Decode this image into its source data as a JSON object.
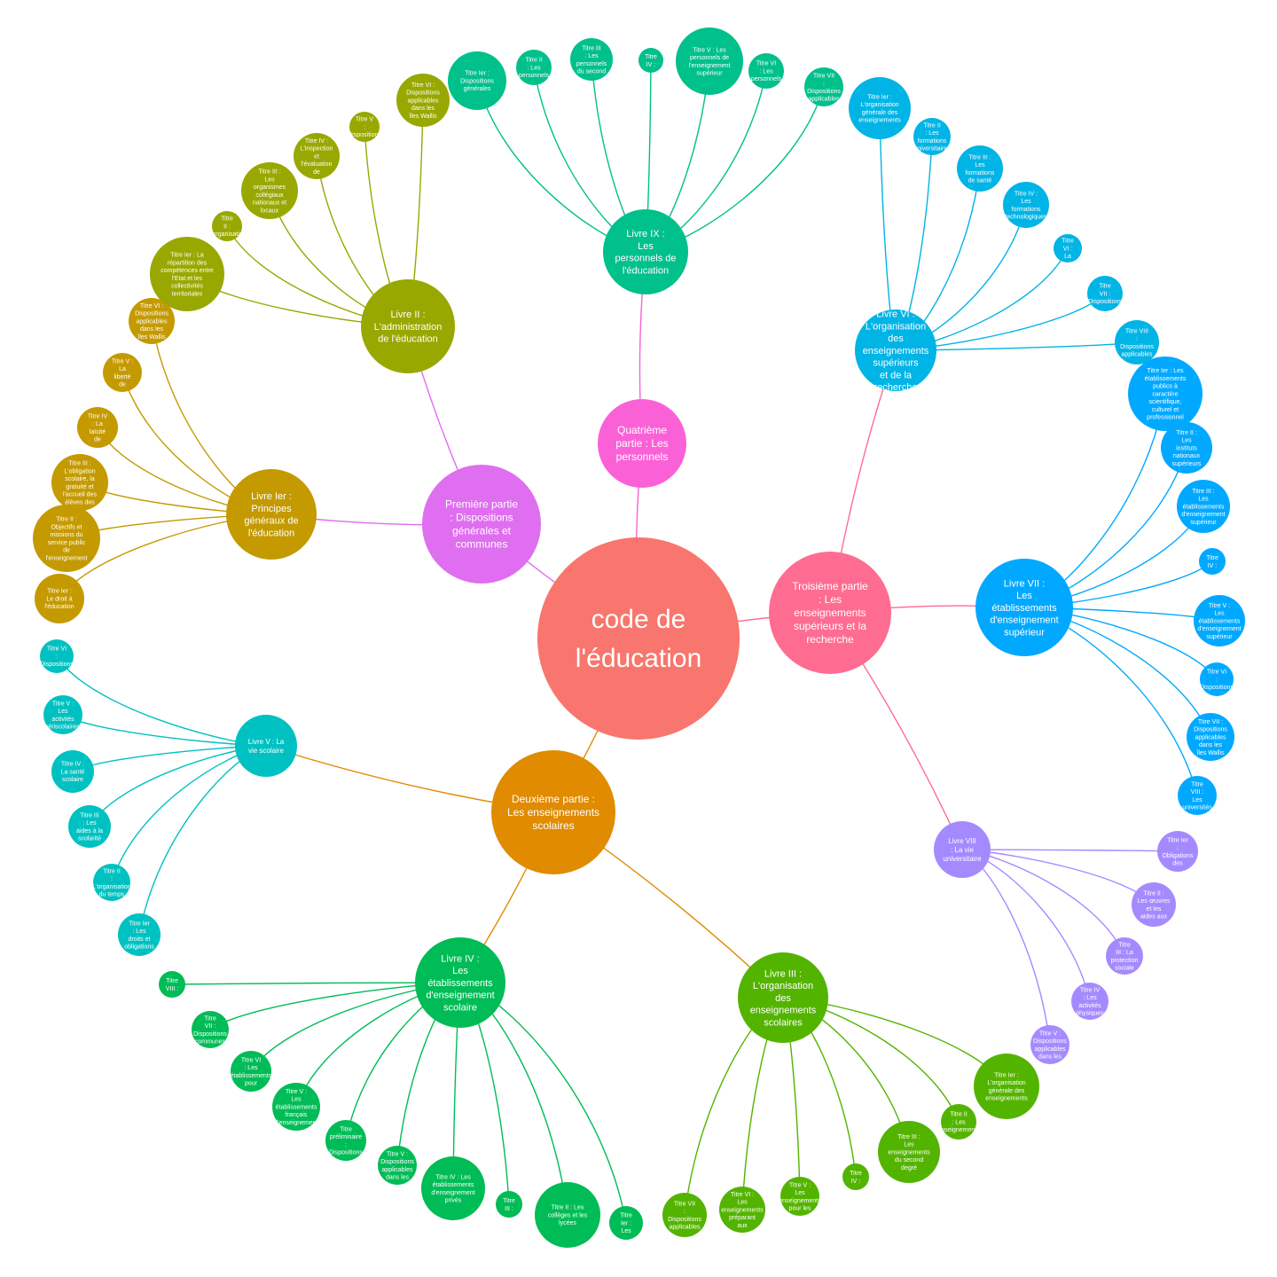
{
  "root": {
    "label": "code de l'éducation",
    "color": "#F8766D"
  },
  "parts": [
    {
      "label": "Première partie : Dispositions générales et communes",
      "color": "#E06EF0",
      "books": [
        {
          "label": "Livre Ier : Principes généraux de l'éducation",
          "color": "#C49A00",
          "titles": [
            "Titre V : La liberté de l'enseignement",
            "Titre IV : La laïcité de l'enseignement public",
            "Titre III : L'obligation scolaire, la gratuité et l'accueil des élèves des écoles maternelles et élémentaires",
            "Titre II : Objectifs et missions du service public de l'enseignement",
            "Titre Ier : Le droit à l'éducation",
            "Titre VI : Dispositions applicables dans les îles Wallis et Futuna, à Mayotte, en Polynésie française"
          ]
        },
        {
          "label": "Livre II : L'administration de l'éducation",
          "color": "#99A800",
          "titles": [
            "Titre Ier : La répartition des compétences entre l'Etat et les collectivités territoriales",
            "Titre II : L'organisation des services de l'Etat",
            "Titre III : Les organismes collégiaux nationaux et locaux",
            "Titre IV : L'inspection et l'évaluation de l'éducation",
            "Titre V : Dispositions relatives",
            "Titre VI : Dispositions applicables dans les îles Wallis et Futuna, à Mayotte, en Polynésie"
          ]
        }
      ]
    },
    {
      "label": "Quatrième partie : Les personnels",
      "color": "#FB61D7",
      "books": [
        {
          "label": "Livre IX : Les personnels de l'éducation",
          "color": "#00C08B",
          "titles": [
            "Titre Ier : Dispositions générales",
            "Titre II : Les personnels du premier degré",
            "Titre III : Les personnels du second degré",
            "Titre IV : Les personnels d'inspection et de direction",
            "Titre V : Les personnels de l'enseignement supérieur",
            "Titre VI : Les personnels des établissements d'enseignement",
            "Titre VII : Dispositions applicables dans les îles Wallis et Futuna, à Mayotte, en Polynésie"
          ]
        }
      ]
    },
    {
      "label": "Troisième partie : Les enseignements supérieurs et la recherche",
      "color": "#FF6C91",
      "books": [
        {
          "label": "Livre VI : L'organisation des enseignements supérieurs et de la recherche",
          "color": "#00B4E6",
          "titles": [
            "Titre Ier : L'organisation générale des enseignements",
            "Titre II : Les formations universitaires générales et les formations",
            "Titre III : Les formations de santé",
            "Titre IV : Les formations technologiques",
            "Titre VI : La recherche universitaire",
            "Titre VII : Dispositions dans les autres établissements",
            "Titre VIII : Dispositions applicables dans les îles Wallis et Futuna, à Mayotte, en Polynésie française et en Nouvelle-Calédonie"
          ]
        },
        {
          "label": "Livre VII : Les établissements d'enseignement supérieur",
          "color": "#00A9FF",
          "titles": [
            "Titre Ier : Les établissements publics à caractère scientifique, culturel et professionnel",
            "Titre II : Les instituts nationaux supérieurs du professorat et de l'éducation",
            "Titre III : Les établissements d'enseignement supérieur spécialisés",
            "Titre IV : Les établissements administratifs sous tutelle",
            "Titre V : Les établissements d'enseignement supérieur spécialisés",
            "Titre VI : Dispositions communes",
            "Titre VII : Dispositions applicables dans les îles Wallis et Futuna, à Mayotte, en Polynésie française",
            "Titre VIII : Les universités nouvelles implantées dans une outre-mer"
          ]
        },
        {
          "label": "Livre VIII : La vie universitaire",
          "color": "#A58AFF",
          "titles": [
            "Titre Ier : Obligations des usagers du service public",
            "Titre II : Les œuvres et les aides aux étudiants",
            "Titre III : La protection sociale des étudiants",
            "Titre IV : Les activités physiques et sportives universitaires",
            "Titre V : Dispositions applicables dans les îles Wallis et Futuna, à Mayotte, en Polynésie française"
          ]
        }
      ]
    },
    {
      "label": "Deuxième partie : Les enseignements scolaires",
      "color": "#E08B00",
      "books": [
        {
          "label": "Livre III : L'organisation des enseignements scolaires",
          "color": "#53B400",
          "titles": [
            "Titre Ier : L'organisation générale des enseignements",
            "Titre II : Les enseignements du premier degré",
            "Titre III : Les enseignements du second degré",
            "Titre IV : Les enseignements agricole et maritime",
            "Titre V : Les enseignements pour les enfants et adolescents handicapés",
            "Titre VI : Les enseignements préparant aux professions artistiques et culturelles",
            "Titre VII : Dispositions applicables dans les îles Wallis et Futuna, à Mayotte, en Polynésie"
          ]
        },
        {
          "label": "Livre IV : Les établissements d'enseignement scolaire",
          "color": "#00BC56",
          "titles": [
            "Titre Ier : Les écoles",
            "Titre II : Les collèges et les lycées",
            "Titre III : Les centres de formation",
            "Titre IV : Les établissements d'enseignement privés",
            "Titre V : Dispositions applicables dans les îles Wallis et Futuna, à Mayotte, en Polynésie",
            "Titre préliminaire : Dispositions communes",
            "Titre V : Les établissements français d'enseignement à l'étranger",
            "Titre VI : Les établissements pour l'enseignement des professions",
            "Titre VII : Dispositions communes",
            "Titre VIII : Dispositions applicables dans les départements d'outre-mer"
          ]
        },
        {
          "label": "Livre V : La vie scolaire",
          "color": "#00C1C1",
          "titles": [
            "Titre Ier : Les droits et obligations des élèves",
            "Titre II : L'organisation du temps et de l'espace",
            "Titre III : Les aides à la scolarité",
            "Titre IV : La santé scolaire",
            "Titre V : Les activités périscolaires, sportives et culturelles",
            "Titre VI : Dispositions applicables dans les îles Wallis et Futuna, à Mayotte, en Polynésie"
          ]
        }
      ]
    }
  ]
}
